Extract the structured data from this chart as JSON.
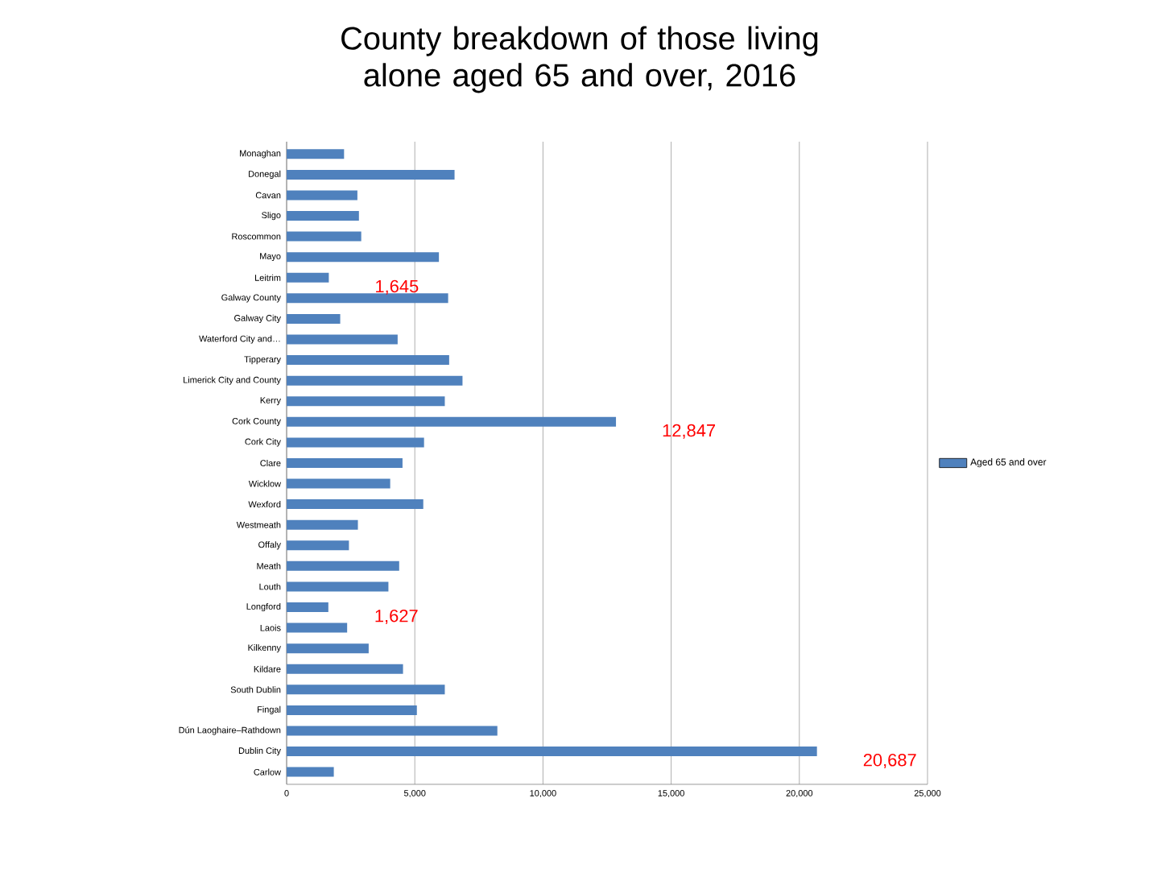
{
  "chart_data": {
    "type": "bar",
    "orientation": "horizontal",
    "title": "County breakdown of those living alone aged 65 and over, 2016",
    "categories": [
      "Monaghan",
      "Donegal",
      "Cavan",
      "Sligo",
      "Roscommon",
      "Mayo",
      "Leitrim",
      "Galway County",
      "Galway City",
      "Waterford City and…",
      "Tipperary",
      "Limerick City and County",
      "Kerry",
      "Cork County",
      "Cork City",
      "Clare",
      "Wicklow",
      "Wexford",
      "Westmeath",
      "Offaly",
      "Meath",
      "Louth",
      "Longford",
      "Laois",
      "Kilkenny",
      "Kildare",
      "South Dublin",
      "Fingal",
      "Dún Laoghaire–Rathdown",
      "Dublin City",
      "Carlow"
    ],
    "series": [
      {
        "name": "Aged 65 and over",
        "color": "#4f81bd",
        "values": [
          2240,
          6550,
          2760,
          2820,
          2910,
          5940,
          1645,
          6300,
          2090,
          4330,
          6340,
          6860,
          6170,
          12847,
          5360,
          4520,
          4040,
          5330,
          2780,
          2430,
          4390,
          3970,
          1627,
          2360,
          3200,
          4540,
          6170,
          5080,
          8220,
          20687,
          1840
        ],
        "value_labels": [
          null,
          null,
          null,
          null,
          null,
          null,
          "1,645",
          null,
          null,
          null,
          null,
          null,
          null,
          "12,847",
          null,
          null,
          null,
          null,
          null,
          null,
          null,
          null,
          "1,627",
          null,
          null,
          null,
          null,
          null,
          null,
          "20,687",
          null
        ]
      }
    ],
    "xlim": [
      0,
      25000
    ],
    "xticks": [
      {
        "value": 0,
        "label": "0"
      },
      {
        "value": 5000,
        "label": "5,000"
      },
      {
        "value": 10000,
        "label": "10,000"
      },
      {
        "value": 15000,
        "label": "15,000"
      },
      {
        "value": 20000,
        "label": "20,000"
      },
      {
        "value": 25000,
        "label": "25,000"
      }
    ],
    "grid": "x",
    "legend": "right"
  }
}
